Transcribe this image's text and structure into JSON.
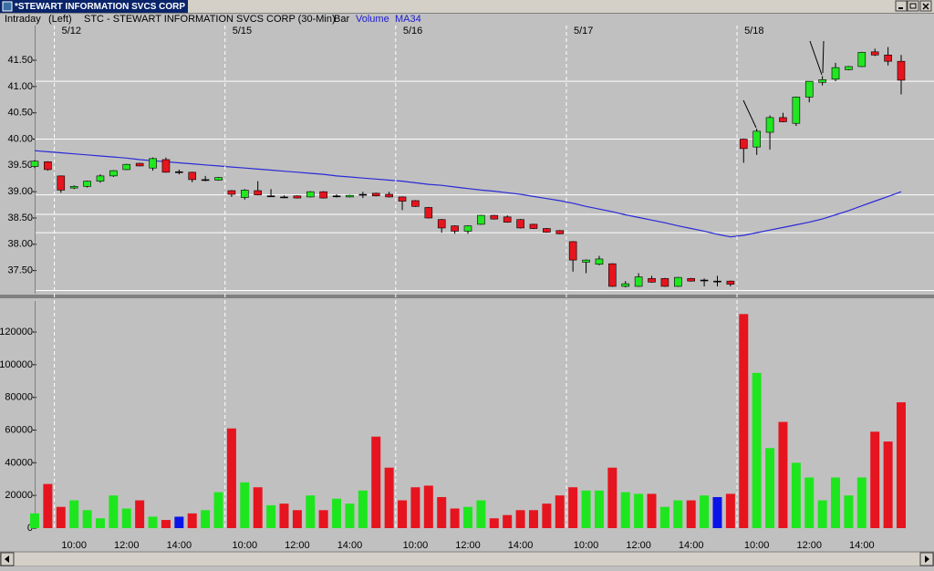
{
  "window": {
    "title": "*STEWART INFORMATION SVCS CORP",
    "header": [
      "Intraday",
      "(Left)",
      "STC - STEWART INFORMATION SVCS CORP (30-Min)",
      "Bar"
    ]
  },
  "chart_data": [
    {
      "type": "candlestick",
      "open": [
        39.48,
        39.57,
        39.3,
        39.07,
        39.1,
        39.2,
        39.3,
        39.42,
        39.54,
        39.45,
        39.61,
        39.38,
        39.37,
        39.23,
        39.22,
        39.02,
        38.89,
        39.02,
        38.92,
        38.9,
        38.92,
        38.9,
        39.0,
        38.92,
        38.9,
        38.95,
        38.97,
        38.95,
        38.9,
        38.83,
        38.7,
        38.47,
        38.35,
        38.25,
        38.38,
        38.55,
        38.52,
        38.47,
        38.38,
        38.3,
        38.26,
        38.05,
        37.66,
        37.62,
        37.63,
        37.2,
        37.2,
        37.35,
        37.35,
        37.2,
        37.35,
        37.32,
        37.3,
        37.3,
        40.0,
        39.85,
        40.13,
        40.41,
        40.3,
        40.8,
        41.08,
        41.14,
        41.32,
        41.38,
        41.66,
        41.6,
        41.48
      ],
      "high": [
        39.6,
        39.58,
        39.31,
        39.12,
        39.21,
        39.33,
        39.41,
        39.53,
        39.55,
        39.65,
        39.65,
        39.42,
        39.38,
        39.3,
        39.28,
        39.03,
        39.05,
        39.2,
        39.05,
        38.93,
        38.93,
        39.01,
        39.01,
        38.95,
        38.94,
        39.0,
        38.98,
        39.0,
        38.91,
        38.84,
        38.71,
        38.48,
        38.36,
        38.36,
        38.56,
        38.56,
        38.55,
        38.48,
        38.39,
        38.31,
        38.27,
        38.06,
        37.71,
        37.78,
        37.64,
        37.3,
        37.45,
        37.4,
        37.36,
        37.38,
        37.36,
        37.35,
        37.4,
        37.31,
        40.01,
        40.2,
        40.45,
        40.5,
        40.81,
        41.1,
        41.2,
        41.45,
        41.39,
        41.66,
        41.72,
        41.75,
        41.6
      ],
      "low": [
        39.45,
        39.4,
        38.98,
        39.05,
        39.08,
        39.17,
        39.28,
        39.41,
        39.48,
        39.4,
        39.36,
        39.33,
        39.18,
        39.2,
        39.21,
        38.9,
        38.85,
        38.93,
        38.9,
        38.88,
        38.87,
        38.89,
        38.87,
        38.89,
        38.89,
        38.88,
        38.91,
        38.89,
        38.65,
        38.71,
        38.49,
        38.22,
        38.2,
        38.2,
        38.37,
        38.47,
        38.41,
        38.3,
        38.29,
        38.22,
        38.19,
        37.48,
        37.45,
        37.6,
        37.19,
        37.18,
        37.19,
        37.27,
        37.19,
        37.19,
        37.29,
        37.2,
        37.2,
        37.2,
        39.55,
        39.7,
        39.8,
        40.32,
        40.25,
        40.7,
        41.02,
        41.1,
        41.31,
        41.37,
        41.58,
        41.4,
        40.85
      ],
      "close": [
        39.58,
        39.42,
        39.03,
        39.1,
        39.2,
        39.3,
        39.4,
        39.52,
        39.49,
        39.63,
        39.37,
        39.38,
        39.23,
        39.23,
        39.27,
        38.95,
        39.03,
        38.94,
        38.92,
        38.9,
        38.88,
        39.0,
        38.88,
        38.92,
        38.93,
        38.95,
        38.92,
        38.9,
        38.82,
        38.72,
        38.5,
        38.31,
        38.25,
        38.35,
        38.55,
        38.48,
        38.42,
        38.31,
        38.3,
        38.23,
        38.2,
        37.7,
        37.7,
        37.72,
        37.2,
        37.25,
        37.38,
        37.28,
        37.2,
        37.37,
        37.3,
        37.32,
        37.3,
        37.24,
        39.82,
        40.15,
        40.41,
        40.33,
        40.8,
        41.1,
        41.13,
        41.36,
        41.38,
        41.65,
        41.6,
        41.48,
        41.12
      ],
      "up_color": "#22e622",
      "down_color": "#e6141e",
      "flat_color": "#000000",
      "series": [
        {
          "name": "MA34",
          "color": "#2a2ad8",
          "values": [
            39.78,
            39.76,
            39.74,
            39.72,
            39.7,
            39.68,
            39.66,
            39.64,
            39.61,
            39.59,
            39.57,
            39.55,
            39.53,
            39.51,
            39.49,
            39.47,
            39.45,
            39.43,
            39.41,
            39.39,
            39.37,
            39.35,
            39.33,
            39.3,
            39.28,
            39.26,
            39.24,
            39.22,
            39.2,
            39.17,
            39.14,
            39.12,
            39.09,
            39.06,
            39.03,
            39.01,
            38.98,
            38.95,
            38.91,
            38.87,
            38.83,
            38.78,
            38.72,
            38.67,
            38.62,
            38.56,
            38.51,
            38.46,
            38.41,
            38.35,
            38.3,
            38.25,
            38.19,
            38.14,
            38.17,
            38.22,
            38.27,
            38.32,
            38.37,
            38.42,
            38.48,
            38.56,
            38.64,
            38.73,
            38.82,
            38.91,
            39.0
          ]
        }
      ],
      "levels": [
        41.1,
        40.0,
        38.94,
        38.57,
        38.22,
        37.12
      ],
      "sessions": [
        {
          "label": "5/12",
          "start": 2
        },
        {
          "label": "5/15",
          "start": 15
        },
        {
          "label": "5/16",
          "start": 28
        },
        {
          "label": "5/17",
          "start": 41
        },
        {
          "label": "5/18",
          "start": 54
        }
      ],
      "ylim": [
        37.06,
        42.16
      ],
      "yticks": [
        {
          "value": 37.5,
          "label": "37.50"
        },
        {
          "value": 38,
          "label": "38.00"
        },
        {
          "value": 38.5,
          "label": "38.50"
        },
        {
          "value": 39,
          "label": "39.00"
        },
        {
          "value": 39.5,
          "label": "39.50"
        },
        {
          "value": 40,
          "label": "40.00"
        },
        {
          "value": 40.5,
          "label": "40.50"
        },
        {
          "value": 41,
          "label": "41.00"
        },
        {
          "value": 41.5,
          "label": "41.50"
        }
      ]
    },
    {
      "type": "bar",
      "categories": [
        null,
        null,
        null,
        "10:00",
        null,
        null,
        null,
        "12:00",
        null,
        null,
        null,
        "14:00",
        null,
        null,
        null,
        null,
        "10:00",
        null,
        null,
        null,
        "12:00",
        null,
        null,
        null,
        "14:00",
        null,
        null,
        null,
        null,
        "10:00",
        null,
        null,
        null,
        "12:00",
        null,
        null,
        null,
        "14:00",
        null,
        null,
        null,
        null,
        "10:00",
        null,
        null,
        null,
        "12:00",
        null,
        null,
        null,
        "14:00",
        null,
        null,
        null,
        null,
        "10:00",
        null,
        null,
        null,
        "12:00",
        null,
        null,
        null,
        "14:00",
        null,
        null,
        null
      ],
      "series": [
        {
          "name": "Volume",
          "values": [
            9000,
            27000,
            13000,
            17000,
            11000,
            6000,
            20000,
            12000,
            17000,
            7000,
            5000,
            7000,
            9000,
            11000,
            22000,
            61000,
            28000,
            25000,
            14000,
            15000,
            11000,
            20000,
            11000,
            18000,
            15000,
            23000,
            56000,
            37000,
            17000,
            25000,
            26000,
            19000,
            12000,
            13000,
            17000,
            6000,
            8000,
            11000,
            11000,
            15000,
            20000,
            25000,
            23000,
            23000,
            37000,
            22000,
            21000,
            21000,
            13000,
            17000,
            17000,
            20000,
            19000,
            21000,
            131000,
            95000,
            49000,
            65000,
            40000,
            31000,
            17000,
            31000,
            20000,
            31000,
            59000,
            53000,
            77000
          ],
          "colors": [
            "#1ee61e",
            "#e6141e",
            "#e6141e",
            "#1ee61e",
            "#1ee61e",
            "#1ee61e",
            "#1ee61e",
            "#1ee61e",
            "#e6141e",
            "#1ee61e",
            "#e6141e",
            "#0a14e6",
            "#e6141e",
            "#1ee61e",
            "#1ee61e",
            "#e6141e",
            "#1ee61e",
            "#e6141e",
            "#1ee61e",
            "#e6141e",
            "#e6141e",
            "#1ee61e",
            "#e6141e",
            "#1ee61e",
            "#1ee61e",
            "#1ee61e",
            "#e6141e",
            "#e6141e",
            "#e6141e",
            "#e6141e",
            "#e6141e",
            "#e6141e",
            "#e6141e",
            "#1ee61e",
            "#1ee61e",
            "#e6141e",
            "#e6141e",
            "#e6141e",
            "#e6141e",
            "#e6141e",
            "#e6141e",
            "#e6141e",
            "#1ee61e",
            "#1ee61e",
            "#e6141e",
            "#1ee61e",
            "#1ee61e",
            "#e6141e",
            "#1ee61e",
            "#1ee61e",
            "#e6141e",
            "#1ee61e",
            "#0a14e6",
            "#e6141e",
            "#e6141e",
            "#1ee61e",
            "#1ee61e",
            "#e6141e",
            "#1ee61e",
            "#1ee61e",
            "#1ee61e",
            "#1ee61e",
            "#1ee61e",
            "#1ee61e",
            "#e6141e",
            "#e6141e",
            "#e6141e"
          ]
        }
      ],
      "ylim": [
        0,
        139000
      ],
      "yticks": [
        0,
        20000,
        40000,
        60000,
        80000,
        100000,
        120000
      ]
    }
  ]
}
